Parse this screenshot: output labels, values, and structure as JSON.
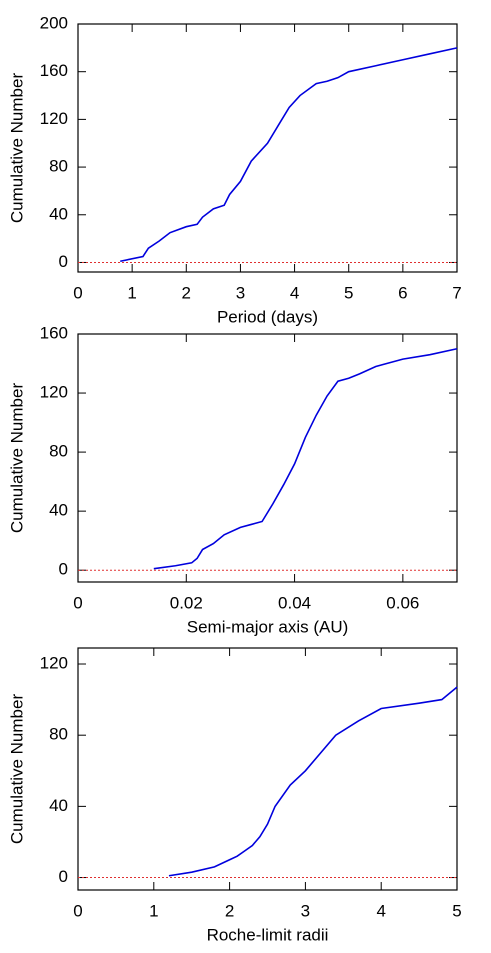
{
  "chart_data": [
    {
      "type": "line",
      "xlabel": "Period (days)",
      "ylabel": "Cumulative Number",
      "x": [
        0.78,
        1.2,
        1.3,
        1.5,
        1.7,
        2.0,
        2.2,
        2.3,
        2.5,
        2.7,
        2.8,
        3.0,
        3.2,
        3.5,
        3.7,
        3.9,
        4.1,
        4.4,
        4.6,
        4.8,
        5.0,
        5.5,
        6.0,
        6.5,
        7.0
      ],
      "values": [
        1,
        5,
        12,
        18,
        25,
        30,
        32,
        38,
        45,
        48,
        57,
        68,
        85,
        100,
        115,
        130,
        140,
        150,
        152,
        155,
        160,
        165,
        170,
        175,
        180
      ],
      "color": "#0000dd",
      "xlim": [
        0,
        7
      ],
      "ylim": [
        -8,
        200
      ],
      "xticks": [
        0,
        1,
        2,
        3,
        4,
        5,
        6,
        7
      ],
      "yticks": [
        0,
        40,
        80,
        120,
        160,
        200
      ],
      "hline": 0,
      "hline_color": "#e03030"
    },
    {
      "type": "line",
      "xlabel": "Semi-major axis (AU)",
      "ylabel": "Cumulative Number",
      "x": [
        0.014,
        0.018,
        0.021,
        0.022,
        0.023,
        0.025,
        0.027,
        0.03,
        0.032,
        0.034,
        0.036,
        0.038,
        0.04,
        0.042,
        0.044,
        0.046,
        0.048,
        0.05,
        0.052,
        0.055,
        0.06,
        0.065,
        0.07
      ],
      "values": [
        1,
        3,
        5,
        8,
        14,
        18,
        24,
        29,
        31,
        33,
        45,
        58,
        72,
        90,
        105,
        118,
        128,
        130,
        133,
        138,
        143,
        146,
        150
      ],
      "color": "#0000dd",
      "xlim": [
        0,
        0.07
      ],
      "ylim": [
        -8,
        160
      ],
      "xticks": [
        0,
        0.02,
        0.04,
        0.06
      ],
      "yticks": [
        0,
        40,
        80,
        120,
        160
      ],
      "hline": 0,
      "hline_color": "#e03030"
    },
    {
      "type": "line",
      "xlabel": "Roche-limit radii",
      "ylabel": "Cumulative Number",
      "x": [
        1.2,
        1.5,
        1.8,
        2.0,
        2.1,
        2.2,
        2.3,
        2.4,
        2.5,
        2.6,
        2.8,
        3.0,
        3.2,
        3.4,
        3.7,
        4.0,
        4.5,
        4.8,
        5.0
      ],
      "values": [
        1,
        3,
        6,
        10,
        12,
        15,
        18,
        23,
        30,
        40,
        52,
        60,
        70,
        80,
        88,
        95,
        98,
        100,
        107
      ],
      "color": "#0000dd",
      "xlim": [
        0,
        5
      ],
      "ylim": [
        -7,
        129
      ],
      "xticks": [
        0,
        1,
        2,
        3,
        4,
        5
      ],
      "yticks": [
        0,
        40,
        80,
        120
      ],
      "hline": 0,
      "hline_color": "#e03030"
    }
  ]
}
